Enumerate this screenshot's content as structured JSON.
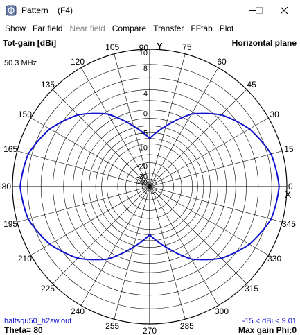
{
  "window": {
    "title": "Pattern    (F4)",
    "icon": "antenna-app-icon",
    "controls": [
      "minimize-icon",
      "maximize-icon",
      "close-icon"
    ]
  },
  "menu": [
    {
      "label": "Show",
      "enabled": true
    },
    {
      "label": "Far field",
      "enabled": true
    },
    {
      "label": "Near field",
      "enabled": false
    },
    {
      "label": "Compare",
      "enabled": true
    },
    {
      "label": "Transfer",
      "enabled": true
    },
    {
      "label": "FFtab",
      "enabled": true
    },
    {
      "label": "Plot",
      "enabled": true
    }
  ],
  "plot": {
    "top_left": "Tot-gain [dBi]",
    "top_right": "Horizontal plane",
    "frequency": "50.3 MHz",
    "bottom_left_file": "halfsqu50_h2sw.out",
    "bottom_left_theta": "Theta= 80",
    "bottom_right_range": "-15 < dBi < 9.01",
    "bottom_right_max": "Max gain Phi:0",
    "y_axis_letter": "Y",
    "x_axis_letter": "X",
    "colors": {
      "pattern": "#1010d0",
      "grid": "#000000",
      "range_text": "#1010d0",
      "file_text": "#1010d0"
    }
  },
  "chart_data": {
    "type": "polar",
    "units": "dBi",
    "radial_ticks": [
      10,
      8,
      4,
      0,
      -5,
      -10,
      -20,
      -30,
      -40
    ],
    "angle_labels": [
      0,
      15,
      30,
      45,
      60,
      75,
      90,
      105,
      120,
      135,
      150,
      165,
      180,
      195,
      210,
      225,
      240,
      255,
      270,
      285,
      300,
      315,
      330,
      345
    ],
    "series": [
      {
        "phi_deg": [
          0,
          15,
          30,
          45,
          60,
          75,
          90,
          105,
          120,
          135,
          150,
          165,
          180,
          195,
          210,
          225,
          240,
          255,
          270,
          285,
          300,
          315,
          330,
          345
        ],
        "gain_dbi": [
          9.0,
          8.5,
          7.0,
          4.8,
          1.5,
          -3.5,
          -8.0,
          -3.5,
          1.5,
          4.8,
          7.0,
          8.5,
          9.0,
          8.5,
          7.0,
          4.8,
          1.5,
          -3.5,
          -8.0,
          -3.5,
          1.5,
          4.8,
          7.0,
          8.5
        ]
      }
    ]
  }
}
